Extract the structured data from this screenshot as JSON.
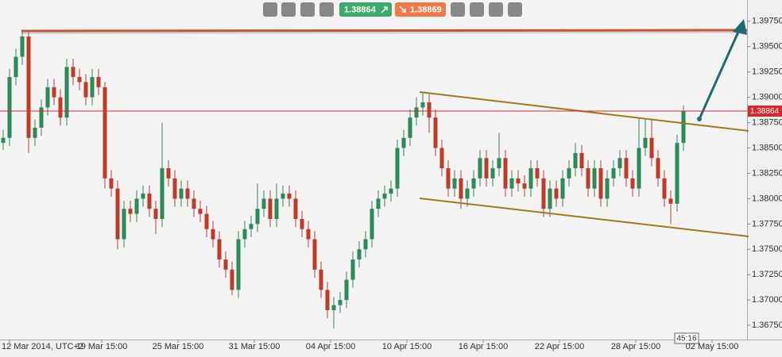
{
  "chart_data": {
    "type": "candlestick",
    "toolbar": {
      "bid": "1.38864",
      "ask": "1.38869"
    },
    "timer": "45:16",
    "current_price": 1.38864,
    "up_color": "#2e8b57",
    "down_color": "#c0392b",
    "price_line_color": "#d42a2a",
    "xlim": [
      0,
      117.5
    ],
    "xticks": [
      {
        "value": 1.5,
        "label": "12 Mar 2014, UTC+2"
      },
      {
        "value": 16,
        "label": "19 Mar 15:00"
      },
      {
        "value": 28,
        "label": "25 Mar 15:00"
      },
      {
        "value": 40,
        "label": "31 Mar 15:00"
      },
      {
        "value": 52,
        "label": "04 Apr 15:00"
      },
      {
        "value": 64,
        "label": "10 Apr 15:00"
      },
      {
        "value": 76,
        "label": "16 Apr 15:00"
      },
      {
        "value": 88,
        "label": "22 Apr 15:00"
      },
      {
        "value": 100,
        "label": "28 Apr 15:00"
      },
      {
        "value": 112,
        "label": "02 May 15:00"
      }
    ],
    "ylim": [
      1.3661,
      1.3996
    ],
    "yticks": [
      {
        "value": 1.3975,
        "label": "1.39750"
      },
      {
        "value": 1.395,
        "label": "1.39500"
      },
      {
        "value": 1.3925,
        "label": "1.39250"
      },
      {
        "value": 1.39,
        "label": "1.39000"
      },
      {
        "value": 1.3875,
        "label": "1.38750"
      },
      {
        "value": 1.385,
        "label": "1.38500"
      },
      {
        "value": 1.3825,
        "label": "1.38250"
      },
      {
        "value": 1.38,
        "label": "1.38000"
      },
      {
        "value": 1.3775,
        "label": "1.37750"
      },
      {
        "value": 1.375,
        "label": "1.37500"
      },
      {
        "value": 1.3725,
        "label": "1.37250"
      },
      {
        "value": 1.37,
        "label": "1.37000"
      },
      {
        "value": 1.3675,
        "label": "1.36750"
      }
    ],
    "open": [
      1.3855,
      1.386,
      1.392,
      1.394,
      1.396,
      1.386,
      1.387,
      1.389,
      1.391,
      1.39,
      1.388,
      1.393,
      1.392,
      1.3915,
      1.39,
      1.392,
      1.391,
      1.382,
      1.381,
      1.376,
      1.379,
      1.3785,
      1.38,
      1.3805,
      1.379,
      1.378,
      1.383,
      1.382,
      1.38,
      1.381,
      1.38,
      1.379,
      1.3785,
      1.377,
      1.376,
      1.374,
      1.373,
      1.371,
      1.376,
      1.377,
      1.3775,
      1.379,
      1.38,
      1.378,
      1.38,
      1.3805,
      1.38,
      1.378,
      1.377,
      1.376,
      1.373,
      1.371,
      1.369,
      1.3695,
      1.37,
      1.372,
      1.374,
      1.375,
      1.376,
      1.379,
      1.38,
      1.3805,
      1.381,
      1.385,
      1.386,
      1.388,
      1.389,
      1.3895,
      1.388,
      1.385,
      1.383,
      1.381,
      1.382,
      1.38,
      1.381,
      1.382,
      1.384,
      1.382,
      1.383,
      1.384,
      1.381,
      1.382,
      1.3815,
      1.381,
      1.383,
      1.382,
      1.379,
      1.381,
      1.38,
      1.382,
      1.383,
      1.3845,
      1.383,
      1.381,
      1.383,
      1.38,
      1.382,
      1.383,
      1.384,
      1.382,
      1.381,
      1.385,
      1.386,
      1.384,
      1.382,
      1.38,
      1.3795,
      1.3855
    ],
    "high": [
      1.3868,
      1.3928,
      1.3948,
      1.3966,
      1.3965,
      1.3878,
      1.3898,
      1.3918,
      1.3918,
      1.3908,
      1.3938,
      1.3938,
      1.3928,
      1.3923,
      1.3928,
      1.3928,
      1.3915,
      1.3828,
      1.3818,
      1.3798,
      1.3798,
      1.3808,
      1.3813,
      1.3813,
      1.3798,
      1.3875,
      1.3838,
      1.3828,
      1.3818,
      1.3818,
      1.3808,
      1.3798,
      1.3793,
      1.3778,
      1.3768,
      1.3748,
      1.3738,
      1.3768,
      1.3778,
      1.3783,
      1.3815,
      1.3808,
      1.3808,
      1.3815,
      1.3813,
      1.3813,
      1.3808,
      1.3788,
      1.3778,
      1.3768,
      1.3738,
      1.3718,
      1.3703,
      1.3708,
      1.3728,
      1.3748,
      1.3758,
      1.3768,
      1.3798,
      1.3808,
      1.3813,
      1.3818,
      1.3858,
      1.3868,
      1.3888,
      1.39,
      1.3905,
      1.3903,
      1.3888,
      1.3858,
      1.3838,
      1.3828,
      1.3828,
      1.3818,
      1.3828,
      1.3848,
      1.3848,
      1.3838,
      1.3865,
      1.3848,
      1.3828,
      1.3828,
      1.3823,
      1.3838,
      1.3838,
      1.3828,
      1.3818,
      1.3818,
      1.3828,
      1.3838,
      1.3855,
      1.3853,
      1.3838,
      1.3838,
      1.3838,
      1.3828,
      1.3838,
      1.3848,
      1.3848,
      1.3828,
      1.388,
      1.3878,
      1.3878,
      1.3848,
      1.3828,
      1.3808,
      1.3863,
      1.3892
    ],
    "low": [
      1.3848,
      1.3852,
      1.3912,
      1.3932,
      1.3845,
      1.3852,
      1.3862,
      1.3882,
      1.3892,
      1.3872,
      1.3872,
      1.3912,
      1.3907,
      1.3892,
      1.3892,
      1.3902,
      1.381,
      1.3802,
      1.375,
      1.3752,
      1.3777,
      1.3777,
      1.3792,
      1.3782,
      1.3765,
      1.3772,
      1.3812,
      1.3792,
      1.3792,
      1.3792,
      1.3782,
      1.3777,
      1.3762,
      1.3752,
      1.3732,
      1.3722,
      1.3705,
      1.3702,
      1.3752,
      1.3762,
      1.3767,
      1.3782,
      1.3772,
      1.3772,
      1.3792,
      1.3792,
      1.3772,
      1.3762,
      1.3752,
      1.3722,
      1.3702,
      1.3682,
      1.3672,
      1.3687,
      1.3692,
      1.3712,
      1.3732,
      1.3742,
      1.3752,
      1.3782,
      1.3792,
      1.3797,
      1.3802,
      1.3842,
      1.3852,
      1.3872,
      1.3882,
      1.3865,
      1.3842,
      1.3822,
      1.3802,
      1.3802,
      1.379,
      1.3792,
      1.3802,
      1.3812,
      1.3812,
      1.3812,
      1.3822,
      1.3802,
      1.3802,
      1.3807,
      1.3802,
      1.3802,
      1.3812,
      1.3782,
      1.3782,
      1.3792,
      1.3792,
      1.3812,
      1.3822,
      1.3822,
      1.3802,
      1.3802,
      1.3792,
      1.3792,
      1.3812,
      1.3822,
      1.3812,
      1.3802,
      1.3802,
      1.3842,
      1.3832,
      1.3812,
      1.3792,
      1.3775,
      1.3787,
      1.3847
    ],
    "close": [
      1.386,
      1.392,
      1.394,
      1.396,
      1.386,
      1.387,
      1.389,
      1.391,
      1.39,
      1.388,
      1.393,
      1.392,
      1.3915,
      1.39,
      1.392,
      1.391,
      1.382,
      1.381,
      1.376,
      1.379,
      1.3785,
      1.38,
      1.3805,
      1.379,
      1.378,
      1.383,
      1.382,
      1.38,
      1.381,
      1.38,
      1.379,
      1.3785,
      1.377,
      1.376,
      1.374,
      1.373,
      1.371,
      1.376,
      1.377,
      1.3775,
      1.379,
      1.38,
      1.378,
      1.38,
      1.3805,
      1.38,
      1.378,
      1.377,
      1.376,
      1.373,
      1.371,
      1.369,
      1.3695,
      1.37,
      1.372,
      1.374,
      1.375,
      1.376,
      1.379,
      1.38,
      1.3805,
      1.381,
      1.385,
      1.386,
      1.388,
      1.389,
      1.3895,
      1.388,
      1.385,
      1.383,
      1.381,
      1.382,
      1.38,
      1.381,
      1.382,
      1.384,
      1.382,
      1.383,
      1.384,
      1.381,
      1.382,
      1.3815,
      1.381,
      1.383,
      1.382,
      1.379,
      1.381,
      1.38,
      1.382,
      1.383,
      1.3845,
      1.383,
      1.381,
      1.383,
      1.38,
      1.382,
      1.383,
      1.384,
      1.382,
      1.381,
      1.385,
      1.386,
      1.384,
      1.382,
      1.38,
      1.3795,
      1.3855,
      1.38864
    ]
  }
}
